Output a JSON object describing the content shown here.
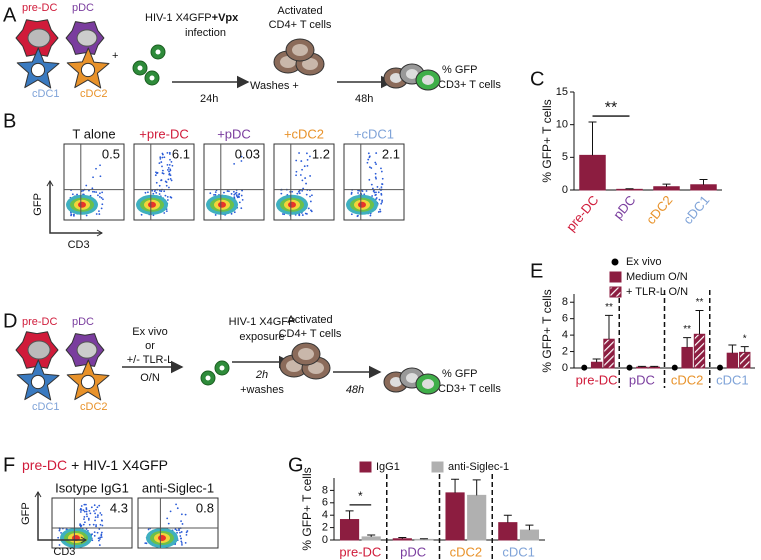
{
  "figure": {
    "panel_labels": [
      "A",
      "B",
      "C",
      "D",
      "E",
      "F",
      "G"
    ],
    "panel_a": {
      "cells": [
        "pre-DC",
        "pDC",
        "cDC1",
        "cDC2"
      ],
      "plus": "+",
      "virus_line1": "HIV-1 X4GFP",
      "virus_bold": "+Vpx",
      "virus_line2": "infection",
      "time1": "24h",
      "washes": "Washes +",
      "target_line1": "Activated",
      "target_line2": "CD4+ T cells",
      "time2": "48h",
      "readout_line1": "% GFP",
      "readout_line2": "CD3+ T cells"
    },
    "panel_b": {
      "y_label": "GFP",
      "x_label": "CD3",
      "plots": [
        {
          "label": "T alone",
          "color": "#111111",
          "value": 0.5
        },
        {
          "label": "+pre-DC",
          "color": "#d01b3a",
          "value": 6.1
        },
        {
          "label": "+pDC",
          "color": "#7a3d9e",
          "value": 0.03
        },
        {
          "label": "+cDC2",
          "color": "#e8922a",
          "value": 1.2
        },
        {
          "label": "+cDC1",
          "color": "#7fa3d8",
          "value": 2.1
        }
      ]
    },
    "panel_d": {
      "cells": [
        "pre-DC",
        "pDC",
        "cDC1",
        "cDC2"
      ],
      "condition_lines": [
        "Ex vivo",
        "or",
        "+/- TLR-L",
        "O/N"
      ],
      "virus_line1": "HIV-1 X4GFP",
      "virus_line2": "exposure",
      "time1": "2h",
      "washes": "+washes",
      "target_line1": "Activated",
      "target_line2": "CD4+ T cells",
      "time2": "48h",
      "readout_line1": "% GFP",
      "readout_line2": "CD3+ T cells"
    },
    "panel_f": {
      "title_cell": "pre-DC",
      "title_rest": "+ HIV-1 X4GFP",
      "y_label": "GFP",
      "x_label": "CD3",
      "plots": [
        {
          "label": "Isotype IgG1",
          "value": 4.3
        },
        {
          "label": "anti-Siglec-1",
          "value": 0.8
        }
      ]
    }
  },
  "chart_data": [
    {
      "type": "bar",
      "y_label": "% GFP+ T cells",
      "categories": [
        "pre-DC",
        "pDC",
        "cDC2",
        "cDC1"
      ],
      "category_colors": [
        "#d01b3a",
        "#7a3d9e",
        "#e8922a",
        "#7fa3d8"
      ],
      "series": [
        {
          "color": "#8c1d40",
          "values": [
            5.3,
            0.1,
            0.5,
            0.8
          ],
          "errors": [
            5.1,
            0.1,
            0.4,
            0.8
          ]
        }
      ],
      "ylim": [
        0,
        15
      ],
      "yticks": [
        0,
        5,
        10,
        15
      ],
      "annotations": [
        "**"
      ],
      "separators": false
    },
    {
      "type": "bar",
      "y_label": "% GFP+ T cells",
      "categories": [
        "pre-DC",
        "pDC",
        "cDC2",
        "cDC1"
      ],
      "category_colors": [
        "#d01b3a",
        "#7a3d9e",
        "#e8922a",
        "#7fa3d8"
      ],
      "series": [
        {
          "name": "Ex vivo",
          "color": "#000000",
          "values": [
            0.05,
            0.05,
            0.05,
            0.05
          ]
        },
        {
          "name": "Medium O/N",
          "color": "#8c1d40",
          "values": [
            0.7,
            0.1,
            2.5,
            1.8
          ],
          "errors": [
            0.4,
            0.1,
            1.2,
            1.0
          ]
        },
        {
          "name": "+ TLR-L O/N",
          "color": "#8c1d40",
          "hatch": true,
          "values": [
            3.5,
            0.1,
            4.1,
            1.9
          ],
          "errors": [
            2.9,
            0.1,
            2.9,
            0.7
          ]
        }
      ],
      "ylim": [
        0,
        9
      ],
      "yticks": [
        0,
        2,
        4,
        6,
        8
      ],
      "annotations": [
        "**",
        "**",
        "**",
        "*"
      ],
      "separators": true
    },
    {
      "type": "bar",
      "y_label": "% GFP+ T cells",
      "categories": [
        "pre-DC",
        "pDC",
        "cDC2",
        "cDC1"
      ],
      "category_colors": [
        "#d01b3a",
        "#7a3d9e",
        "#e8922a",
        "#7fa3d8"
      ],
      "series": [
        {
          "name": "IgG1",
          "color": "#8c1d40",
          "values": [
            3.3,
            0.2,
            7.6,
            2.8
          ],
          "errors": [
            1.4,
            0.2,
            2.2,
            1.2
          ]
        },
        {
          "name": "anti-Siglec-1",
          "color": "#b0b0b0",
          "values": [
            0.5,
            0.1,
            7.2,
            1.6
          ],
          "errors": [
            0.3,
            0.1,
            2.5,
            0.8
          ]
        }
      ],
      "ylim": [
        0,
        10
      ],
      "yticks": [
        0,
        2,
        4,
        6,
        8
      ],
      "annotations": [
        "*"
      ],
      "separators": true
    }
  ]
}
